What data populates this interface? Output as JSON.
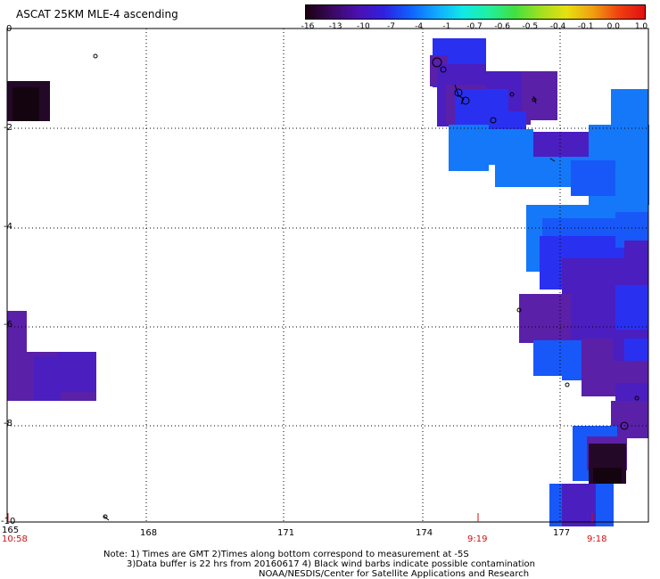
{
  "title": "ASCAT 25KM MLE-4 ascending",
  "colorbar": {
    "labels": [
      "-16",
      "-13",
      "-10",
      "-7",
      "-4",
      "-1",
      "-0.7",
      "-0.6",
      "-0.5",
      "-0.4",
      "-0.1",
      "0.0",
      "1.0"
    ],
    "colors": [
      "#1a0010",
      "#3a0860",
      "#4b10b0",
      "#3020e0",
      "#1060ff",
      "#10a8ff",
      "#10e8e8",
      "#20f0a0",
      "#40e040",
      "#a0e020",
      "#e8e010",
      "#f0a010",
      "#f04010",
      "#e01010"
    ]
  },
  "map": {
    "lon_ticks": [
      "165",
      "168",
      "171",
      "174",
      "177"
    ],
    "lat_ticks": [
      "0",
      "-2",
      "-4",
      "-6",
      "-8",
      "-10"
    ],
    "time_labels": [
      "10:58",
      "9:19",
      "9:18"
    ],
    "colors": {
      "purple": "#5a20a8",
      "violet": "#4b1ec0",
      "blue": "#2a30f0",
      "royal": "#1858f8",
      "sky": "#1478f8",
      "dark": "#240828",
      "black": "#140410",
      "grid": "#000000",
      "time": "#d01010"
    }
  },
  "footer": {
    "line1": "Note: 1) Times are GMT 2)Times along bottom correspond to measurement at -5S",
    "line2": "3)Data buffer is 22 hrs from 20160617 4) Black wind barbs indicate possible contamination",
    "line3": "NOAA/NESDIS/Center for Satellite Applications and Research"
  }
}
